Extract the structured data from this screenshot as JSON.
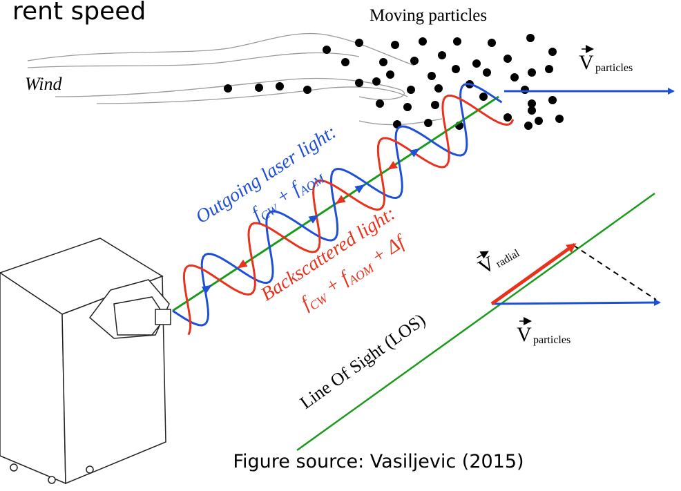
{
  "header": {
    "title": "rent speed"
  },
  "particles_label": "Moving particles",
  "wind_label": "Wind",
  "velocity_top": {
    "symbol": "V",
    "subscript": "particles"
  },
  "outgoing": {
    "label": "Outgoing laser light:",
    "formula": [
      "f",
      "CW",
      " + f",
      "AOM"
    ]
  },
  "backscattered": {
    "label": "Backscattered light:",
    "formula": [
      "f",
      "CW",
      " + f",
      "AOM",
      " + Δf"
    ]
  },
  "velocity_radial": {
    "symbol": "V",
    "subscript": "radial"
  },
  "velocity_bottom": {
    "symbol": "V",
    "subscript": "particles"
  },
  "los_label": "Line Of Sight (LOS)",
  "caption": "Figure source: Vasiljevic (2015)"
}
